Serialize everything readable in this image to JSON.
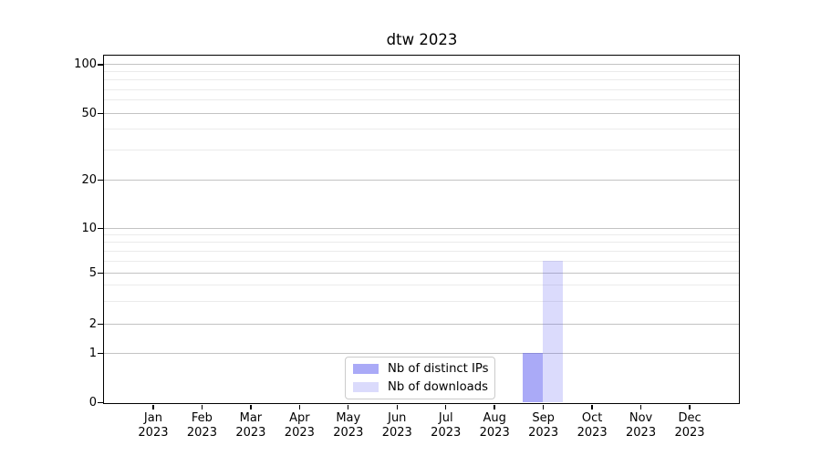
{
  "title": "dtw 2023",
  "chart_data": {
    "type": "bar",
    "title": "dtw 2023",
    "categories": [
      "Jan",
      "Feb",
      "Mar",
      "Apr",
      "May",
      "Jun",
      "Jul",
      "Aug",
      "Sep",
      "Oct",
      "Nov",
      "Dec"
    ],
    "year_label": "2023",
    "series": [
      {
        "name": "Nb of distinct IPs",
        "color": "#a9a9f7",
        "fill": "rgba(85,85,240,0.5)",
        "values": [
          0,
          0,
          0,
          0,
          0,
          0,
          0,
          0,
          1,
          0,
          0,
          0
        ]
      },
      {
        "name": "Nb of downloads",
        "color": "#d9d9f7",
        "fill": "rgba(85,85,240,0.21)",
        "values": [
          0,
          0,
          0,
          0,
          0,
          0,
          0,
          0,
          6,
          0,
          0,
          0
        ]
      }
    ],
    "y_axis": {
      "scale": "symlog",
      "ticks": [
        0,
        1,
        2,
        5,
        10,
        20,
        50,
        100
      ],
      "minor_ticks": [
        3,
        4,
        6,
        7,
        8,
        9,
        30,
        40,
        60,
        70,
        80,
        90
      ],
      "ylim": [
        0,
        115
      ]
    },
    "x_axis": {
      "ticks_per_month": true
    },
    "grid": true,
    "legend_position": "lower center",
    "background_color": "#ffffff",
    "gridline_major_color": "#c3c3c3",
    "gridline_minor_color": "#ebebeb"
  }
}
